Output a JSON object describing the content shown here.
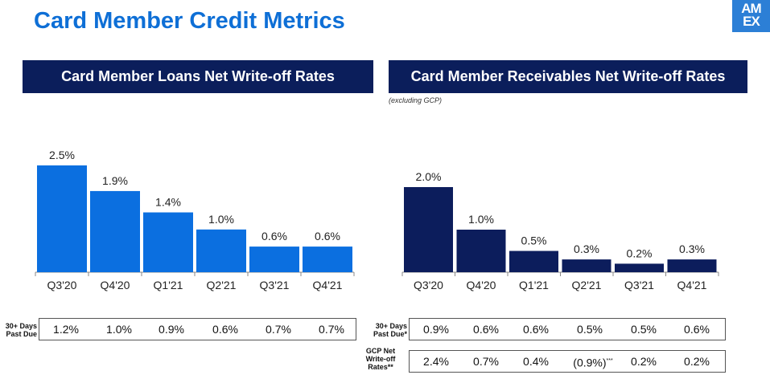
{
  "title": "Card Member Credit Metrics",
  "logo": {
    "line1": "AM",
    "line2": "EX"
  },
  "colors": {
    "title": "#0e6fd6",
    "banner": "#0b1e5b",
    "left_bar": "#0b6fe0",
    "right_bar": "#0c1d5c"
  },
  "left_banner": "Card Member Loans Net Write-off Rates",
  "right_banner": "Card Member Receivables Net Write-off Rates",
  "right_note": "(excluding GCP)",
  "chart_data": [
    {
      "type": "bar",
      "categories": [
        "Q3'20",
        "Q4'20",
        "Q1'21",
        "Q2'21",
        "Q3'21",
        "Q4'21"
      ],
      "values": [
        2.5,
        1.9,
        1.4,
        1.0,
        0.6,
        0.6
      ],
      "labels": [
        "2.5%",
        "1.9%",
        "1.4%",
        "1.0%",
        "0.6%",
        "0.6%"
      ],
      "ylim": [
        0,
        2.5
      ]
    },
    {
      "type": "bar",
      "categories": [
        "Q3'20",
        "Q4'20",
        "Q1'21",
        "Q2'21",
        "Q3'21",
        "Q4'21"
      ],
      "values": [
        2.0,
        1.0,
        0.5,
        0.3,
        0.2,
        0.3
      ],
      "labels": [
        "2.0%",
        "1.0%",
        "0.5%",
        "0.3%",
        "0.2%",
        "0.3%"
      ],
      "ylim": [
        0,
        2.0
      ]
    }
  ],
  "left_table": {
    "label_line1": "30+ Days",
    "label_line2": "Past Due",
    "values": [
      "1.2%",
      "1.0%",
      "0.9%",
      "0.6%",
      "0.7%",
      "0.7%"
    ]
  },
  "right_table_past_due": {
    "label_line1": "30+ Days",
    "label_line2": "Past Due*",
    "values": [
      "0.9%",
      "0.6%",
      "0.6%",
      "0.5%",
      "0.5%",
      "0.6%"
    ]
  },
  "right_table_gcp": {
    "label_line1": "GCP Net",
    "label_line2": "Write-off",
    "label_line3": "Rates**",
    "values": [
      "2.4%",
      "0.7%",
      "0.4%",
      "(0.9%)",
      "0.2%",
      "0.2%"
    ],
    "footnote_mark": "***"
  }
}
